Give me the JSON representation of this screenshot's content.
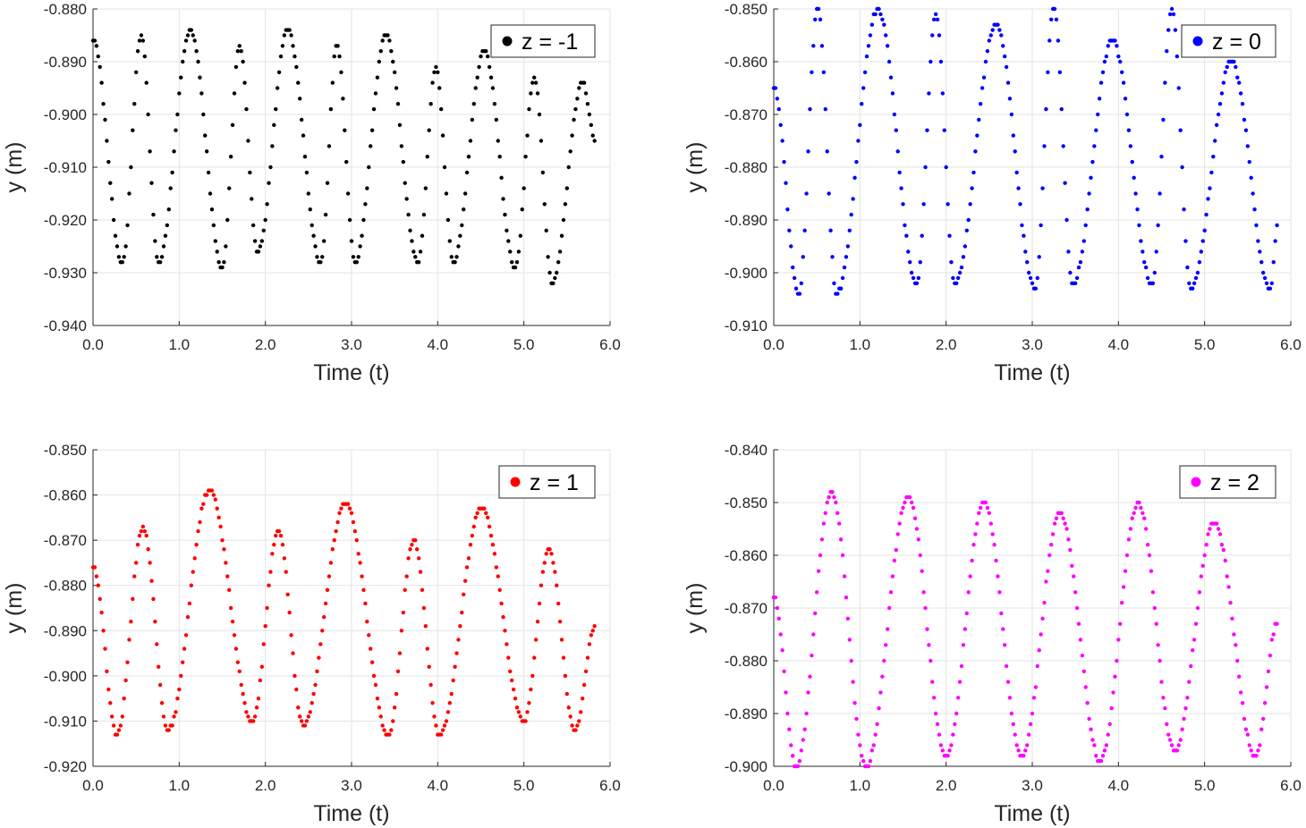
{
  "chart_data": [
    {
      "type": "scatter",
      "title": "",
      "xlabel": "Time (t)",
      "ylabel": "y (m)",
      "xlim": [
        0,
        6
      ],
      "ylim": [
        -0.94,
        -0.88
      ],
      "xticks": [
        0,
        1,
        2,
        3,
        4,
        5,
        6
      ],
      "yticks": [
        -0.88,
        -0.89,
        -0.9,
        -0.91,
        -0.92,
        -0.93,
        -0.94
      ],
      "grid": true,
      "legend": {
        "label": "z = -1",
        "placement": "top-right"
      },
      "color": "#000000",
      "sample_step": 0.02,
      "extrema_t": [
        0,
        0.34,
        0.56,
        0.76,
        1.13,
        1.5,
        1.7,
        1.91,
        2.26,
        2.64,
        2.83,
        3.04,
        3.4,
        3.77,
        3.98,
        4.18,
        4.54,
        4.9,
        5.12,
        5.33,
        5.68,
        5.83
      ],
      "extrema_y": [
        -0.886,
        -0.928,
        -0.885,
        -0.928,
        -0.884,
        -0.929,
        -0.887,
        -0.926,
        -0.884,
        -0.928,
        -0.887,
        -0.928,
        -0.885,
        -0.928,
        -0.891,
        -0.928,
        -0.888,
        -0.929,
        -0.893,
        -0.932,
        -0.894,
        -0.905
      ]
    },
    {
      "type": "scatter",
      "title": "",
      "xlabel": "Time (t)",
      "ylabel": "y (m)",
      "xlim": [
        0,
        6
      ],
      "ylim": [
        -0.91,
        -0.85
      ],
      "xticks": [
        0,
        1,
        2,
        3,
        4,
        5,
        6
      ],
      "yticks": [
        -0.85,
        -0.86,
        -0.87,
        -0.88,
        -0.89,
        -0.9,
        -0.91
      ],
      "grid": true,
      "legend": {
        "label": "z = 0",
        "placement": "top-right"
      },
      "color": "#0000ff",
      "sample_step": 0.02,
      "extrema_t": [
        0,
        0.29,
        0.51,
        0.73,
        1.21,
        1.66,
        1.88,
        2.1,
        2.58,
        3.03,
        3.25,
        3.47,
        3.93,
        4.39,
        4.62,
        4.84,
        5.31,
        5.76,
        5.85
      ],
      "extrema_y": [
        -0.865,
        -0.904,
        -0.85,
        -0.904,
        -0.85,
        -0.902,
        -0.851,
        -0.902,
        -0.853,
        -0.903,
        -0.85,
        -0.902,
        -0.856,
        -0.902,
        -0.85,
        -0.903,
        -0.86,
        -0.903,
        -0.891
      ]
    },
    {
      "type": "scatter",
      "title": "",
      "xlabel": "Time (t)",
      "ylabel": "y (m)",
      "xlim": [
        0,
        6
      ],
      "ylim": [
        -0.92,
        -0.85
      ],
      "xticks": [
        0,
        1,
        2,
        3,
        4,
        5,
        6
      ],
      "yticks": [
        -0.85,
        -0.86,
        -0.87,
        -0.88,
        -0.89,
        -0.9,
        -0.91,
        -0.92
      ],
      "grid": true,
      "legend": {
        "label": "z = 1",
        "placement": "top-right"
      },
      "color": "#ff0000",
      "sample_step": 0.02,
      "extrema_t": [
        0,
        0.28,
        0.58,
        0.87,
        1.35,
        1.85,
        2.15,
        2.44,
        2.93,
        3.43,
        3.72,
        4.02,
        4.51,
        5.0,
        5.29,
        5.59,
        5.83
      ],
      "extrema_y": [
        -0.876,
        -0.913,
        -0.867,
        -0.912,
        -0.859,
        -0.91,
        -0.868,
        -0.911,
        -0.862,
        -0.913,
        -0.87,
        -0.913,
        -0.863,
        -0.91,
        -0.872,
        -0.912,
        -0.889
      ]
    },
    {
      "type": "scatter",
      "title": "",
      "xlabel": "Time (t)",
      "ylabel": "y (m)",
      "xlim": [
        0,
        6
      ],
      "ylim": [
        -0.9,
        -0.84
      ],
      "xticks": [
        0,
        1,
        2,
        3,
        4,
        5,
        6
      ],
      "yticks": [
        -0.84,
        -0.85,
        -0.86,
        -0.87,
        -0.88,
        -0.89,
        -0.9
      ],
      "grid": true,
      "legend": {
        "label": "z = 2",
        "placement": "top-right"
      },
      "color": "#ff00ff",
      "sample_step": 0.02,
      "extrema_t": [
        0,
        0.26,
        0.67,
        1.07,
        1.56,
        2.0,
        2.44,
        2.88,
        3.32,
        3.79,
        4.23,
        4.65,
        5.11,
        5.59,
        5.84
      ],
      "extrema_y": [
        -0.868,
        -0.9,
        -0.848,
        -0.9,
        -0.849,
        -0.898,
        -0.85,
        -0.898,
        -0.852,
        -0.899,
        -0.85,
        -0.897,
        -0.854,
        -0.898,
        -0.873
      ]
    }
  ]
}
